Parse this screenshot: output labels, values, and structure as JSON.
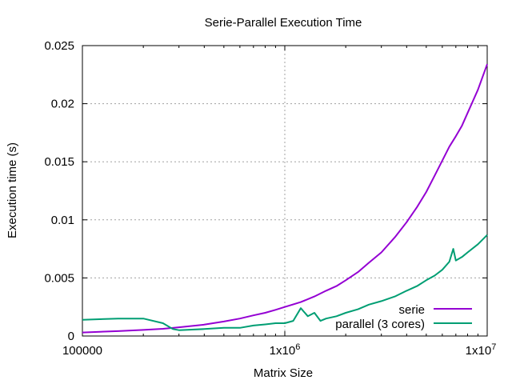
{
  "chart_data": {
    "type": "line",
    "title": "Serie-Parallel Execution Time",
    "xlabel": "Matrix Size",
    "ylabel": "Execution time (s)",
    "xscale": "log",
    "xlim": [
      100000,
      10000000
    ],
    "ylim": [
      0,
      0.025
    ],
    "grid": true,
    "legend_position": "bottom-right",
    "x_ticks": [
      {
        "value": 100000,
        "base": "100000",
        "exp": ""
      },
      {
        "value": 1000000,
        "base": "1x10",
        "exp": "6"
      },
      {
        "value": 10000000,
        "base": "1x10",
        "exp": "7"
      }
    ],
    "y_ticks": [
      {
        "value": 0,
        "label": "0"
      },
      {
        "value": 0.005,
        "label": "0.005"
      },
      {
        "value": 0.01,
        "label": "0.01"
      },
      {
        "value": 0.015,
        "label": "0.015"
      },
      {
        "value": 0.02,
        "label": "0.02"
      },
      {
        "value": 0.025,
        "label": "0.025"
      }
    ],
    "series": [
      {
        "name": "serie",
        "color": "#9400d3",
        "x": [
          100000,
          150000,
          200000,
          250000,
          300000,
          400000,
          500000,
          600000,
          700000,
          800000,
          900000,
          1000000,
          1200000,
          1400000,
          1600000,
          1800000,
          2000000,
          2300000,
          2600000,
          3000000,
          3500000,
          4000000,
          4500000,
          5000000,
          5500000,
          6000000,
          6500000,
          7000000,
          7500000,
          8000000,
          9000000,
          10000000
        ],
        "y": [
          0.0003,
          0.00042,
          0.00052,
          0.00062,
          0.00075,
          0.00098,
          0.00125,
          0.0015,
          0.00178,
          0.002,
          0.00225,
          0.0025,
          0.00292,
          0.0034,
          0.0039,
          0.0043,
          0.0048,
          0.0055,
          0.0063,
          0.0072,
          0.0085,
          0.0098,
          0.0111,
          0.0124,
          0.0138,
          0.0151,
          0.0163,
          0.0172,
          0.0181,
          0.0192,
          0.0212,
          0.0234
        ]
      },
      {
        "name": "parallel (3 cores)",
        "color": "#009e73",
        "x": [
          100000,
          150000,
          200000,
          250000,
          280000,
          300000,
          400000,
          500000,
          600000,
          700000,
          800000,
          900000,
          1000000,
          1100000,
          1200000,
          1300000,
          1400000,
          1500000,
          1600000,
          1800000,
          2000000,
          2300000,
          2600000,
          3000000,
          3500000,
          4000000,
          4500000,
          5000000,
          5500000,
          6000000,
          6500000,
          6800000,
          7000000,
          7500000,
          8000000,
          9000000,
          10000000
        ],
        "y": [
          0.0014,
          0.0015,
          0.0015,
          0.0011,
          0.0006,
          0.0005,
          0.0006,
          0.0007,
          0.0007,
          0.0009,
          0.001,
          0.0011,
          0.0011,
          0.0013,
          0.0024,
          0.0017,
          0.002,
          0.0013,
          0.0015,
          0.0017,
          0.002,
          0.0023,
          0.0027,
          0.003,
          0.0034,
          0.0039,
          0.0043,
          0.0048,
          0.0052,
          0.0057,
          0.0064,
          0.0075,
          0.0065,
          0.0068,
          0.0072,
          0.0079,
          0.0087
        ]
      }
    ]
  }
}
